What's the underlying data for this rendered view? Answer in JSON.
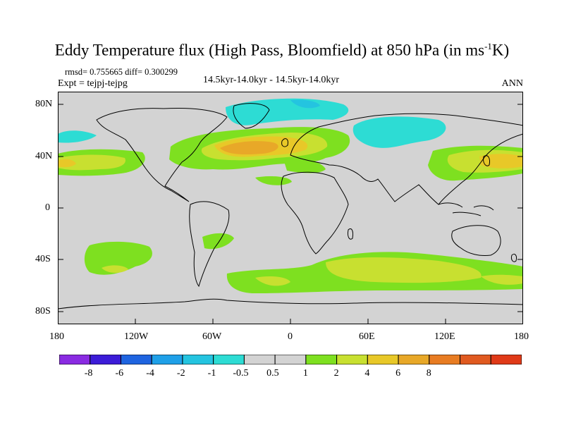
{
  "title": {
    "main": "Eddy Temperature flux (High Pass, Bloomfield) at 850 hPa (in ms",
    "sup": "-1",
    "tail": "K)"
  },
  "stats": {
    "text": "rmsd= 0.755665 diff= 0.300299"
  },
  "expt": {
    "text": "Expt = tejpj-tejpg"
  },
  "period": {
    "text": "14.5kyr-14.0kyr - 14.5kyr-14.0kyr"
  },
  "season": {
    "text": "ANN"
  },
  "axes": {
    "lat_labels": [
      "80N",
      "40N",
      "0",
      "40S",
      "80S"
    ],
    "lon_labels": [
      "180",
      "120W",
      "60W",
      "0",
      "60E",
      "120E",
      "180"
    ]
  },
  "colorbar": {
    "colors": [
      "#8a2be2",
      "#3c1cd8",
      "#1f64e0",
      "#1fa0e8",
      "#24c4e0",
      "#2ddcd4",
      "#d3d3d3",
      "#d3d3d3",
      "#7ee020",
      "#c8e030",
      "#e8c828",
      "#e8a828",
      "#e87c22",
      "#e05a20",
      "#e03a18"
    ],
    "labels": [
      "-8",
      "-6",
      "-4",
      "-2",
      "-1",
      "-0.5",
      "0.5",
      "1",
      "2",
      "4",
      "6",
      "8"
    ],
    "label_after_box": [
      1,
      2,
      3,
      4,
      5,
      6,
      7,
      8,
      9,
      10,
      11,
      12
    ]
  }
}
